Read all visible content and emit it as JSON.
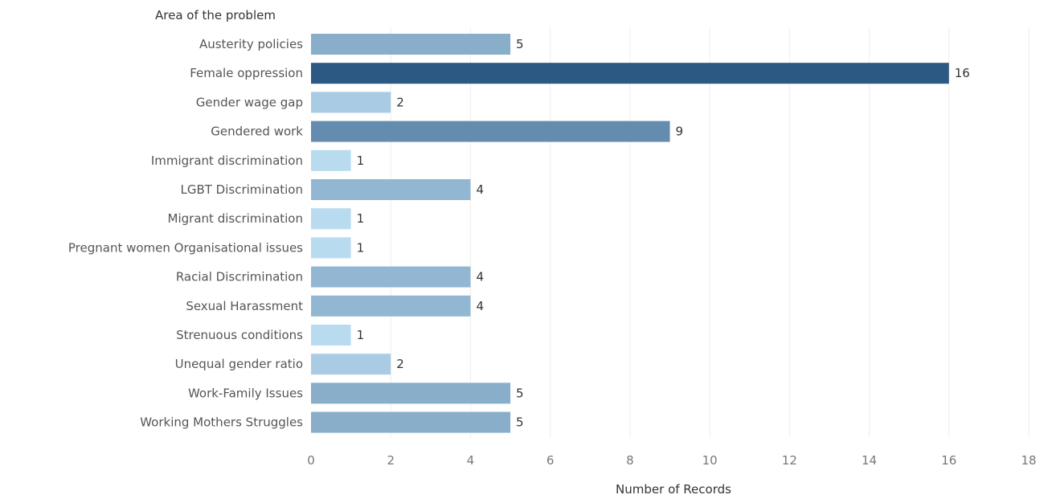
{
  "chart_data": {
    "type": "bar",
    "orientation": "horizontal",
    "row_header": "Area of the problem",
    "xlabel": "Number of Records",
    "ylabel": "",
    "xlim": [
      0,
      18
    ],
    "ticks": [
      0,
      2,
      4,
      6,
      8,
      10,
      12,
      14,
      16,
      18
    ],
    "grid": true,
    "color_scale": {
      "low": "#b9dbf0",
      "high": "#2b5983"
    },
    "categories": [
      "Austerity policies",
      "Female oppression",
      "Gender wage gap",
      "Gendered work",
      "Immigrant discrimination",
      "LGBT Discrimination",
      "Migrant discrimination",
      "Pregnant women Organisational issues",
      "Racial Discrimination",
      "Sexual Harassment",
      "Strenuous conditions",
      "Unequal gender ratio",
      "Work-Family Issues",
      "Working Mothers Struggles"
    ],
    "values": [
      5,
      16,
      2,
      9,
      1,
      4,
      1,
      1,
      4,
      4,
      1,
      2,
      5,
      5
    ]
  }
}
